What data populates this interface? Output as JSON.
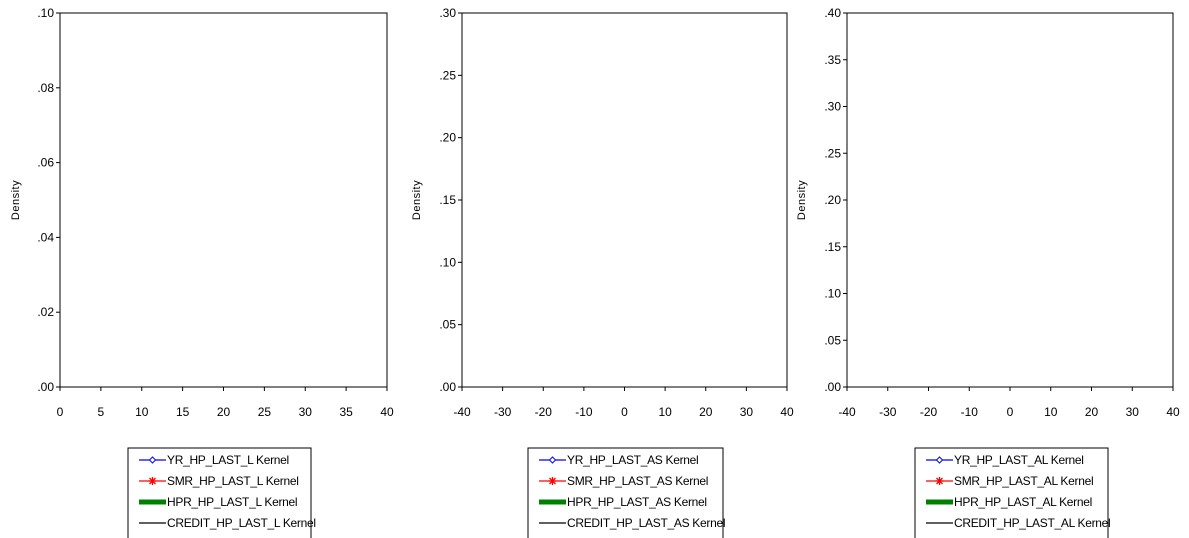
{
  "chart_data": [
    {
      "type": "line",
      "title": "",
      "xlabel": "",
      "ylabel": "Density",
      "xlim": [
        0,
        40
      ],
      "ylim": [
        0,
        0.1
      ],
      "xticks": [
        0,
        5,
        10,
        15,
        20,
        25,
        30,
        35,
        40
      ],
      "xtick_labels": [
        "0",
        "5",
        "10",
        "15",
        "20",
        "25",
        "30",
        "35",
        "40"
      ],
      "yticks": [
        0,
        0.02,
        0.04,
        0.06,
        0.08,
        0.1
      ],
      "ytick_labels": [
        ".00",
        ".02",
        ".04",
        ".06",
        ".08",
        ".10"
      ],
      "grid": false,
      "legend_position": "bottom",
      "series": [
        {
          "name": "YR_HP_LAST_L Kernel",
          "color": "#0000ff",
          "marker": "diamond",
          "x": [],
          "y": []
        },
        {
          "name": "SMR_HP_LAST_L Kernel",
          "color": "#ff0000",
          "marker": "star",
          "x": [],
          "y": []
        },
        {
          "name": "HPR_HP_LAST_L Kernel",
          "color": "#008000",
          "marker": "none",
          "x": [],
          "y": []
        },
        {
          "name": "CREDIT_HP_LAST_L Kernel",
          "color": "#000000",
          "marker": "none",
          "x": [],
          "y": []
        }
      ]
    },
    {
      "type": "line",
      "title": "",
      "xlabel": "",
      "ylabel": "Density",
      "xlim": [
        -40,
        40
      ],
      "ylim": [
        0,
        0.3
      ],
      "xticks": [
        -40,
        -30,
        -20,
        -10,
        0,
        10,
        20,
        30,
        40
      ],
      "xtick_labels": [
        "-40",
        "-30",
        "-20",
        "-10",
        "0",
        "10",
        "20",
        "30",
        "40"
      ],
      "yticks": [
        0,
        0.05,
        0.1,
        0.15,
        0.2,
        0.25,
        0.3
      ],
      "ytick_labels": [
        ".00",
        ".05",
        ".10",
        ".15",
        ".20",
        ".25",
        ".30"
      ],
      "grid": false,
      "legend_position": "bottom",
      "series": [
        {
          "name": "YR_HP_LAST_AS Kernel",
          "color": "#0000ff",
          "marker": "diamond",
          "x": [],
          "y": []
        },
        {
          "name": "SMR_HP_LAST_AS Kernel",
          "color": "#ff0000",
          "marker": "star",
          "x": [],
          "y": []
        },
        {
          "name": "HPR_HP_LAST_AS Kernel",
          "color": "#008000",
          "marker": "none",
          "x": [],
          "y": []
        },
        {
          "name": "CREDIT_HP_LAST_AS Kernel",
          "color": "#000000",
          "marker": "none",
          "x": [],
          "y": []
        }
      ]
    },
    {
      "type": "line",
      "title": "",
      "xlabel": "",
      "ylabel": "Density",
      "xlim": [
        -40,
        40
      ],
      "ylim": [
        0,
        0.4
      ],
      "xticks": [
        -40,
        -30,
        -20,
        -10,
        0,
        10,
        20,
        30,
        40
      ],
      "xtick_labels": [
        "-40",
        "-30",
        "-20",
        "-10",
        "0",
        "10",
        "20",
        "30",
        "40"
      ],
      "yticks": [
        0,
        0.05,
        0.1,
        0.15,
        0.2,
        0.25,
        0.3,
        0.35,
        0.4
      ],
      "ytick_labels": [
        ".00",
        ".05",
        ".10",
        ".15",
        ".20",
        ".25",
        ".30",
        ".35",
        ".40"
      ],
      "grid": false,
      "legend_position": "bottom",
      "series": [
        {
          "name": "YR_HP_LAST_AL Kernel",
          "color": "#0000ff",
          "marker": "diamond",
          "x": [],
          "y": []
        },
        {
          "name": "SMR_HP_LAST_AL Kernel",
          "color": "#ff0000",
          "marker": "star",
          "x": [],
          "y": []
        },
        {
          "name": "HPR_HP_LAST_AL Kernel",
          "color": "#008000",
          "marker": "none",
          "x": [],
          "y": []
        },
        {
          "name": "CREDIT_HP_LAST_AL Kernel",
          "color": "#000000",
          "marker": "none",
          "x": [],
          "y": []
        }
      ]
    }
  ]
}
